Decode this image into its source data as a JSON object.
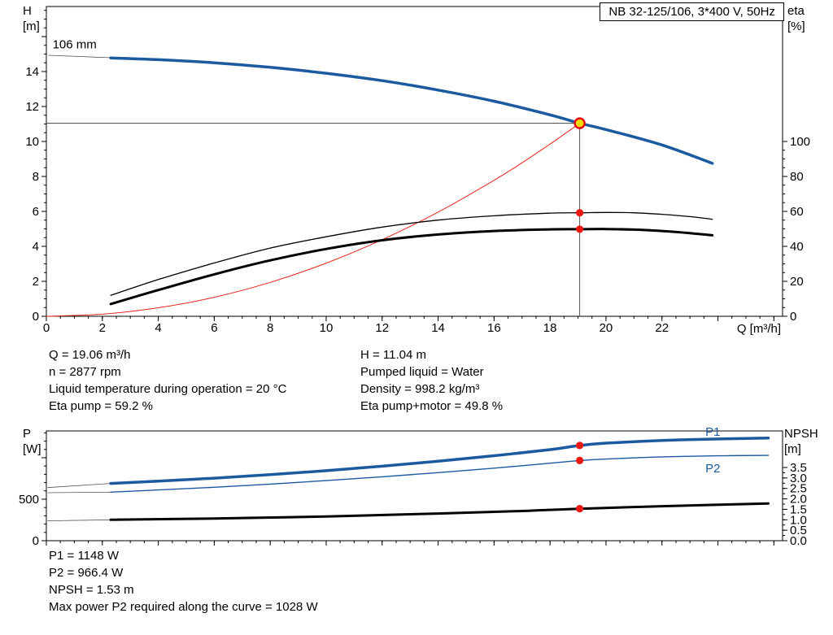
{
  "header": {
    "title": "NB 32-125/106, 3*400 V, 50Hz"
  },
  "colors": {
    "curve_blue": "#1c5aa0",
    "curve_red": "#e8251d",
    "dot_red": "#ee1611",
    "duty_fill": "#ffdd00",
    "duty_ring": "#e30613",
    "connector": "#555555",
    "black": "#000000",
    "ref_line": "#444444"
  },
  "info": {
    "left": [
      "Q = 19.06 m³/h",
      "n = 2877 rpm",
      "Liquid temperature during operation = 20 °C",
      "Eta pump = 59.2 %"
    ],
    "right": [
      "H = 11.04 m",
      "Pumped liquid = Water",
      "Density = 998.2 kg/m³",
      "Eta pump+motor = 49.8 %"
    ],
    "bottom": [
      "P1 = 1148 W",
      "P2 = 966.4 W",
      "NPSH = 1.53 m",
      "Max power P2 required along the curve = 1028 W"
    ]
  },
  "chart_data": [
    {
      "type": "line",
      "name": "qh-eta-chart",
      "title": "NB 32-125/106, 3*400 V, 50Hz",
      "x_axis": {
        "title": "Q [m³/h]",
        "min": 0,
        "max": 26.31,
        "minor_step": 0.5,
        "major_step": 2,
        "ticks": [
          {
            "v": 0,
            "l": "0"
          },
          {
            "v": 2,
            "l": "2"
          },
          {
            "v": 4,
            "l": "4"
          },
          {
            "v": 6,
            "l": "6"
          },
          {
            "v": 8,
            "l": "8"
          },
          {
            "v": 10,
            "l": "10"
          },
          {
            "v": 12,
            "l": "12"
          },
          {
            "v": 14,
            "l": "14"
          },
          {
            "v": 16,
            "l": "16"
          },
          {
            "v": 18,
            "l": "18"
          },
          {
            "v": 20,
            "l": "20"
          },
          {
            "v": 22,
            "l": "22"
          }
        ]
      },
      "y_left": {
        "title": "H",
        "unit": "[m]",
        "min": 0,
        "max": 17.72,
        "minor_step": 0.5,
        "major_step": 2,
        "ticks": [
          {
            "v": 0,
            "l": "0"
          },
          {
            "v": 2,
            "l": "2"
          },
          {
            "v": 4,
            "l": "4"
          },
          {
            "v": 6,
            "l": "6"
          },
          {
            "v": 8,
            "l": "8"
          },
          {
            "v": 10,
            "l": "10"
          },
          {
            "v": 12,
            "l": "12"
          },
          {
            "v": 14,
            "l": "14"
          }
        ]
      },
      "y_right": {
        "title": "eta",
        "unit": "[%]",
        "min": 0,
        "max": 177.2,
        "minor_step": 5,
        "major_step": 20,
        "tick_min": 0,
        "tick_limit": 100,
        "ticks": [
          {
            "v": 0,
            "l": "0"
          },
          {
            "v": 20,
            "l": "20"
          },
          {
            "v": 40,
            "l": "40"
          },
          {
            "v": 60,
            "l": "60"
          },
          {
            "v": 80,
            "l": "80"
          },
          {
            "v": 100,
            "l": "100"
          }
        ]
      },
      "series": [
        {
          "name": "impeller-label-connector",
          "axis": "left",
          "color": "connector",
          "width": 0.8,
          "points": [
            [
              0.08,
              14.93
            ],
            [
              2.3,
              14.79
            ]
          ]
        },
        {
          "name": "system-curve",
          "axis": "left",
          "color": "curve_red",
          "width": 1,
          "points": [
            [
              0,
              0
            ],
            [
              2,
              0.12
            ],
            [
              4,
              0.49
            ],
            [
              6,
              1.09
            ],
            [
              8,
              1.94
            ],
            [
              10,
              3.04
            ],
            [
              12,
              4.38
            ],
            [
              14,
              5.96
            ],
            [
              16,
              7.78
            ],
            [
              17,
              8.78
            ],
            [
              18,
              9.85
            ],
            [
              19.06,
              11.04
            ]
          ]
        },
        {
          "name": "eta-pump-curve",
          "axis": "right",
          "color": "black",
          "width": 1.3,
          "points": [
            [
              2.3,
              12
            ],
            [
              4,
              21
            ],
            [
              6,
              30.5
            ],
            [
              8,
              39
            ],
            [
              10,
              45.5
            ],
            [
              12,
              51
            ],
            [
              14,
              55
            ],
            [
              16,
              57.5
            ],
            [
              18,
              59
            ],
            [
              19.06,
              59.2
            ],
            [
              20,
              59.4
            ],
            [
              21,
              59.2
            ],
            [
              22,
              58.3
            ],
            [
              23,
              57
            ],
            [
              23.8,
              55.5
            ]
          ]
        },
        {
          "name": "eta-pump-motor-curve",
          "axis": "right",
          "color": "black",
          "width": 3,
          "points": [
            [
              2.3,
              7
            ],
            [
              4,
              15
            ],
            [
              6,
              24
            ],
            [
              8,
              32
            ],
            [
              10,
              38.5
            ],
            [
              12,
              43.5
            ],
            [
              14,
              46.8
            ],
            [
              16,
              48.8
            ],
            [
              18,
              49.7
            ],
            [
              19.06,
              49.8
            ],
            [
              20,
              49.9
            ],
            [
              21,
              49.6
            ],
            [
              22,
              48.8
            ],
            [
              23,
              47.6
            ],
            [
              23.8,
              46.3
            ]
          ]
        },
        {
          "name": "head-curve-106mm",
          "axis": "left",
          "color": "curve_blue",
          "width": 3.5,
          "points": [
            [
              2.3,
              14.78
            ],
            [
              4,
              14.68
            ],
            [
              6,
              14.5
            ],
            [
              8,
              14.24
            ],
            [
              10,
              13.9
            ],
            [
              12,
              13.48
            ],
            [
              14,
              12.94
            ],
            [
              16,
              12.3
            ],
            [
              18,
              11.52
            ],
            [
              19.06,
              11.04
            ],
            [
              20,
              10.68
            ],
            [
              22,
              9.8
            ],
            [
              23.8,
              8.75
            ]
          ]
        }
      ],
      "ref_lines": [
        {
          "type": "v",
          "q": 19.06,
          "to": 11.04
        },
        {
          "type": "h",
          "v": 11.04,
          "to": 19.06
        }
      ],
      "markers": [
        {
          "style": "dot",
          "q": 19.06,
          "v": 59.2,
          "axis": "right"
        },
        {
          "style": "dot",
          "q": 19.06,
          "v": 49.8,
          "axis": "right"
        },
        {
          "style": "duty",
          "q": 19.06,
          "v": 11.04,
          "axis": "left"
        }
      ],
      "annotations": [
        {
          "name": "impeller-diameter-label",
          "text": "106 mm",
          "q": 0.22,
          "v": 15.32,
          "axis": "left",
          "color": "black"
        }
      ]
    },
    {
      "type": "line",
      "name": "power-npsh-chart",
      "x_axis": {
        "title": "",
        "min": 0,
        "max": 26.31,
        "minor_step": 0.5,
        "major_step": 2,
        "ticks": []
      },
      "y_left": {
        "title": "P",
        "unit": "[W]",
        "min": 0,
        "max": 1323,
        "minor_step": 100,
        "major_step": 500,
        "ticks": [
          {
            "v": 0,
            "l": "0"
          },
          {
            "v": 500,
            "l": "500"
          }
        ]
      },
      "y_right": {
        "title": "NPSH",
        "unit": "[m]",
        "min": 0,
        "max": 5.25,
        "minor_step": 0.25,
        "major_step": 0.5,
        "tick_min": 0,
        "tick_limit": 3.5,
        "ticks": [
          {
            "v": 0,
            "l": "0.0"
          },
          {
            "v": 0.5,
            "l": "0.5"
          },
          {
            "v": 1,
            "l": "1.0"
          },
          {
            "v": 1.5,
            "l": "1.5"
          },
          {
            "v": 2,
            "l": "2.0"
          },
          {
            "v": 2.5,
            "l": "2.5"
          },
          {
            "v": 3,
            "l": "3.0"
          },
          {
            "v": 3.5,
            "l": "3.5"
          }
        ]
      },
      "series": [
        {
          "name": "p1-connector",
          "axis": "left",
          "color": "connector",
          "width": 0.8,
          "points": [
            [
              0.05,
              640
            ],
            [
              2.3,
              690
            ]
          ]
        },
        {
          "name": "p2-connector",
          "axis": "left",
          "color": "connector",
          "width": 0.8,
          "points": [
            [
              0.05,
              578
            ],
            [
              2.3,
              585
            ]
          ]
        },
        {
          "name": "npsh-connector",
          "axis": "right",
          "color": "connector",
          "width": 0.8,
          "points": [
            [
              0.05,
              0.95
            ],
            [
              2.3,
              1.0
            ]
          ]
        },
        {
          "name": "p2-curve",
          "axis": "left",
          "color": "curve_blue",
          "width": 1.4,
          "points": [
            [
              2.3,
              585
            ],
            [
              4,
              612
            ],
            [
              6,
              644
            ],
            [
              8,
              682
            ],
            [
              10,
              724
            ],
            [
              12,
              770
            ],
            [
              14,
              820
            ],
            [
              16,
              874
            ],
            [
              18,
              934
            ],
            [
              19.06,
              966
            ],
            [
              20,
              984
            ],
            [
              22,
              1010
            ],
            [
              24,
              1023
            ],
            [
              25.8,
              1028
            ]
          ]
        },
        {
          "name": "p1-curve",
          "axis": "left",
          "color": "curve_blue",
          "width": 3.5,
          "points": [
            [
              2.3,
              690
            ],
            [
              4,
              718
            ],
            [
              6,
              754
            ],
            [
              8,
              796
            ],
            [
              10,
              844
            ],
            [
              12,
              898
            ],
            [
              14,
              958
            ],
            [
              16,
              1024
            ],
            [
              18,
              1098
            ],
            [
              19.06,
              1148
            ],
            [
              20,
              1176
            ],
            [
              22,
              1208
            ],
            [
              24,
              1226
            ],
            [
              25.8,
              1238
            ]
          ]
        },
        {
          "name": "npsh-curve",
          "axis": "right",
          "color": "black",
          "width": 3,
          "points": [
            [
              2.3,
              1.0
            ],
            [
              6,
              1.06
            ],
            [
              10,
              1.16
            ],
            [
              14,
              1.3
            ],
            [
              17,
              1.42
            ],
            [
              19.06,
              1.53
            ],
            [
              22,
              1.65
            ],
            [
              25.8,
              1.78
            ]
          ]
        }
      ],
      "ref_lines": [],
      "markers": [
        {
          "style": "dot",
          "q": 19.06,
          "v": 1148,
          "axis": "left"
        },
        {
          "style": "dot",
          "q": 19.06,
          "v": 966.4,
          "axis": "left"
        },
        {
          "style": "dot",
          "q": 19.06,
          "v": 1.53,
          "axis": "right"
        }
      ],
      "annotations": [
        {
          "name": "p1-curve-label",
          "text": "P1",
          "q": 23.55,
          "v": 1262,
          "axis": "left",
          "color": "curve_blue"
        },
        {
          "name": "p2-curve-label",
          "text": "P2",
          "q": 23.55,
          "v": 824,
          "axis": "left",
          "color": "curve_blue"
        }
      ]
    }
  ]
}
